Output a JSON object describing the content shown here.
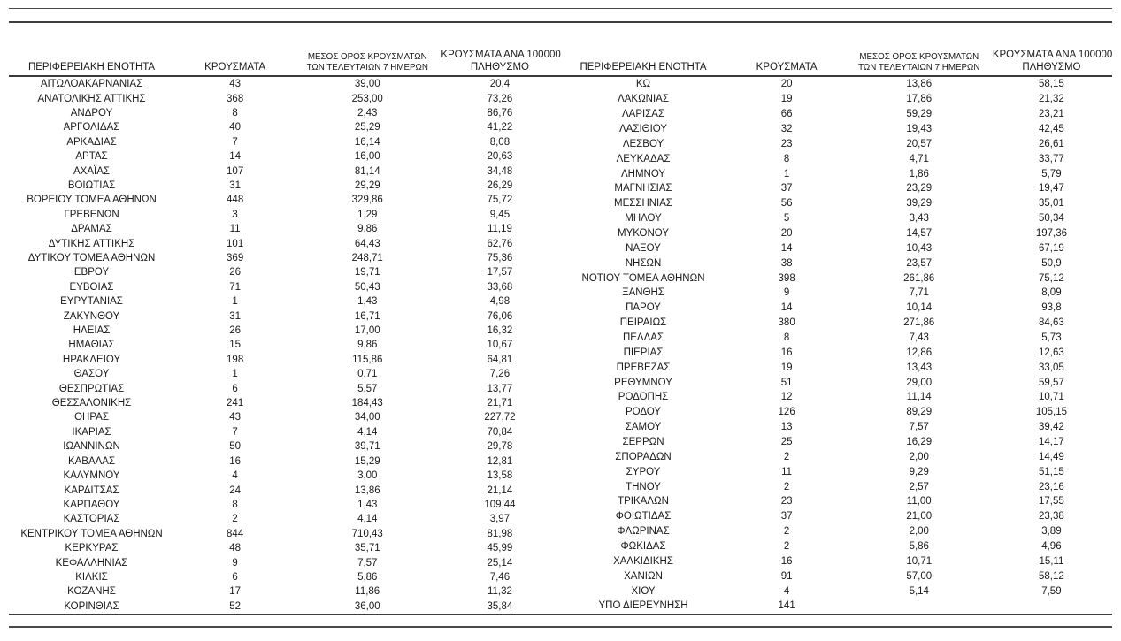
{
  "table_headers": {
    "region": "ΠΕΡΙΦΕΡΕΙΑΚΗ ΕΝΟΤΗΤΑ",
    "cases": "ΚΡΟΥΣΜΑΤΑ",
    "avg7_line1": "ΜΕΣΟΣ ΟΡΟΣ ΚΡΟΥΣΜΑΤΩΝ",
    "avg7_line2": "ΤΩΝ ΤΕΛΕΥΤΑΙΩΝ 7 ΗΜΕΡΩΝ",
    "per100k_line1": "ΚΡΟΥΣΜΑΤΑ ΑΝΑ 100000",
    "per100k_line2": "ΠΛΗΘΥΣΜΟ"
  },
  "tables": {
    "left": {
      "rows": [
        [
          "ΑΙΤΩΛΟΑΚΑΡΝΑΝΙΑΣ",
          "43",
          "39,00",
          "20,4"
        ],
        [
          "ΑΝΑΤΟΛΙΚΗΣ ΑΤΤΙΚΗΣ",
          "368",
          "253,00",
          "73,26"
        ],
        [
          "ΑΝΔΡΟΥ",
          "8",
          "2,43",
          "86,76"
        ],
        [
          "ΑΡΓΟΛΙΔΑΣ",
          "40",
          "25,29",
          "41,22"
        ],
        [
          "ΑΡΚΑΔΙΑΣ",
          "7",
          "16,14",
          "8,08"
        ],
        [
          "ΑΡΤΑΣ",
          "14",
          "16,00",
          "20,63"
        ],
        [
          "ΑΧΑΪΑΣ",
          "107",
          "81,14",
          "34,48"
        ],
        [
          "ΒΟΙΩΤΙΑΣ",
          "31",
          "29,29",
          "26,29"
        ],
        [
          "ΒΟΡΕΙΟΥ ΤΟΜΕΑ ΑΘΗΝΩΝ",
          "448",
          "329,86",
          "75,72"
        ],
        [
          "ΓΡΕΒΕΝΩΝ",
          "3",
          "1,29",
          "9,45"
        ],
        [
          "ΔΡΑΜΑΣ",
          "11",
          "9,86",
          "11,19"
        ],
        [
          "ΔΥΤΙΚΗΣ ΑΤΤΙΚΗΣ",
          "101",
          "64,43",
          "62,76"
        ],
        [
          "ΔΥΤΙΚΟΥ ΤΟΜΕΑ ΑΘΗΝΩΝ",
          "369",
          "248,71",
          "75,36"
        ],
        [
          "ΕΒΡΟΥ",
          "26",
          "19,71",
          "17,57"
        ],
        [
          "ΕΥΒΟΙΑΣ",
          "71",
          "50,43",
          "33,68"
        ],
        [
          "ΕΥΡΥΤΑΝΙΑΣ",
          "1",
          "1,43",
          "4,98"
        ],
        [
          "ΖΑΚΥΝΘΟΥ",
          "31",
          "16,71",
          "76,06"
        ],
        [
          "ΗΛΕΙΑΣ",
          "26",
          "17,00",
          "16,32"
        ],
        [
          "ΗΜΑΘΙΑΣ",
          "15",
          "9,86",
          "10,67"
        ],
        [
          "ΗΡΑΚΛΕΙΟΥ",
          "198",
          "115,86",
          "64,81"
        ],
        [
          "ΘΑΣΟΥ",
          "1",
          "0,71",
          "7,26"
        ],
        [
          "ΘΕΣΠΡΩΤΙΑΣ",
          "6",
          "5,57",
          "13,77"
        ],
        [
          "ΘΕΣΣΑΛΟΝΙΚΗΣ",
          "241",
          "184,43",
          "21,71"
        ],
        [
          "ΘΗΡΑΣ",
          "43",
          "34,00",
          "227,72"
        ],
        [
          "ΙΚΑΡΙΑΣ",
          "7",
          "4,14",
          "70,84"
        ],
        [
          "ΙΩΑΝΝΙΝΩΝ",
          "50",
          "39,71",
          "29,78"
        ],
        [
          "ΚΑΒΑΛΑΣ",
          "16",
          "15,29",
          "12,81"
        ],
        [
          "ΚΑΛΥΜΝΟΥ",
          "4",
          "3,00",
          "13,58"
        ],
        [
          "ΚΑΡΔΙΤΣΑΣ",
          "24",
          "13,86",
          "21,14"
        ],
        [
          "ΚΑΡΠΑΘΟΥ",
          "8",
          "1,43",
          "109,44"
        ],
        [
          "ΚΑΣΤΟΡΙΑΣ",
          "2",
          "4,14",
          "3,97"
        ],
        [
          "ΚΕΝΤΡΙΚΟΥ ΤΟΜΕΑ ΑΘΗΝΩΝ",
          "844",
          "710,43",
          "81,98"
        ],
        [
          "ΚΕΡΚΥΡΑΣ",
          "48",
          "35,71",
          "45,99"
        ],
        [
          "ΚΕΦΑΛΛΗΝΙΑΣ",
          "9",
          "7,57",
          "25,14"
        ],
        [
          "ΚΙΛΚΙΣ",
          "6",
          "5,86",
          "7,46"
        ],
        [
          "ΚΟΖΑΝΗΣ",
          "17",
          "11,86",
          "11,32"
        ],
        [
          "ΚΟΡΙΝΘΙΑΣ",
          "52",
          "36,00",
          "35,84"
        ]
      ]
    },
    "right": {
      "rows": [
        [
          "ΚΩ",
          "20",
          "13,86",
          "58,15"
        ],
        [
          "ΛΑΚΩΝΙΑΣ",
          "19",
          "17,86",
          "21,32"
        ],
        [
          "ΛΑΡΙΣΑΣ",
          "66",
          "59,29",
          "23,21"
        ],
        [
          "ΛΑΣΙΘΙΟΥ",
          "32",
          "19,43",
          "42,45"
        ],
        [
          "ΛΕΣΒΟΥ",
          "23",
          "20,57",
          "26,61"
        ],
        [
          "ΛΕΥΚΑΔΑΣ",
          "8",
          "4,71",
          "33,77"
        ],
        [
          "ΛΗΜΝΟΥ",
          "1",
          "1,86",
          "5,79"
        ],
        [
          "ΜΑΓΝΗΣΙΑΣ",
          "37",
          "23,29",
          "19,47"
        ],
        [
          "ΜΕΣΣΗΝΙΑΣ",
          "56",
          "39,29",
          "35,01"
        ],
        [
          "ΜΗΛΟΥ",
          "5",
          "3,43",
          "50,34"
        ],
        [
          "ΜΥΚΟΝΟΥ",
          "20",
          "14,57",
          "197,36"
        ],
        [
          "ΝΑΞΟΥ",
          "14",
          "10,43",
          "67,19"
        ],
        [
          "ΝΗΣΩΝ",
          "38",
          "23,57",
          "50,9"
        ],
        [
          "ΝΟΤΙΟΥ ΤΟΜΕΑ ΑΘΗΝΩΝ",
          "398",
          "261,86",
          "75,12"
        ],
        [
          "ΞΑΝΘΗΣ",
          "9",
          "7,71",
          "8,09"
        ],
        [
          "ΠΑΡΟΥ",
          "14",
          "10,14",
          "93,8"
        ],
        [
          "ΠΕΙΡΑΙΩΣ",
          "380",
          "271,86",
          "84,63"
        ],
        [
          "ΠΕΛΛΑΣ",
          "8",
          "7,43",
          "5,73"
        ],
        [
          "ΠΙΕΡΙΑΣ",
          "16",
          "12,86",
          "12,63"
        ],
        [
          "ΠΡΕΒΕΖΑΣ",
          "19",
          "13,43",
          "33,05"
        ],
        [
          "ΡΕΘΥΜΝΟΥ",
          "51",
          "29,00",
          "59,57"
        ],
        [
          "ΡΟΔΟΠΗΣ",
          "12",
          "11,14",
          "10,71"
        ],
        [
          "ΡΟΔΟΥ",
          "126",
          "89,29",
          "105,15"
        ],
        [
          "ΣΑΜΟΥ",
          "13",
          "7,57",
          "39,42"
        ],
        [
          "ΣΕΡΡΩΝ",
          "25",
          "16,29",
          "14,17"
        ],
        [
          "ΣΠΟΡΑΔΩΝ",
          "2",
          "2,00",
          "14,49"
        ],
        [
          "ΣΥΡΟΥ",
          "11",
          "9,29",
          "51,15"
        ],
        [
          "ΤΗΝΟΥ",
          "2",
          "2,57",
          "23,16"
        ],
        [
          "ΤΡΙΚΑΛΩΝ",
          "23",
          "11,00",
          "17,55"
        ],
        [
          "ΦΘΙΩΤΙΔΑΣ",
          "37",
          "21,00",
          "23,38"
        ],
        [
          "ΦΛΩΡΙΝΑΣ",
          "2",
          "2,00",
          "3,89"
        ],
        [
          "ΦΩΚΙΔΑΣ",
          "2",
          "5,86",
          "4,96"
        ],
        [
          "ΧΑΛΚΙΔΙΚΗΣ",
          "16",
          "10,71",
          "15,11"
        ],
        [
          "ΧΑΝΙΩΝ",
          "91",
          "57,00",
          "58,12"
        ],
        [
          "ΧΙΟΥ",
          "4",
          "5,14",
          "7,59"
        ],
        [
          "ΥΠΟ ΔΙΕΡΕΥΝΗΣΗ",
          "141",
          "",
          ""
        ]
      ]
    }
  }
}
